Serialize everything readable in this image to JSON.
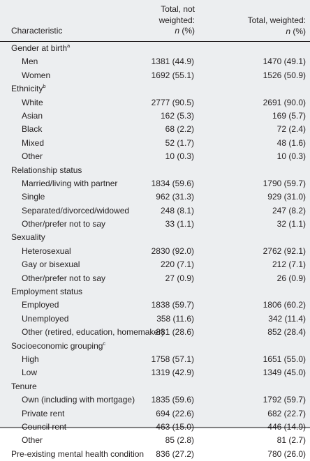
{
  "header": {
    "characteristic": "Characteristic",
    "col1_line1": "Total, not",
    "col1_line2": "weighted:",
    "col1_n": "n",
    "col1_pct": " (%)",
    "col2_line1": "Total, weighted:",
    "col2_n": "n",
    "col2_pct": " (%)"
  },
  "rows": [
    {
      "type": "group",
      "label": "Gender at birth",
      "sup": "a",
      "v1": "",
      "v2": ""
    },
    {
      "type": "item",
      "label": "Men",
      "v1": "1381 (44.9)",
      "v2": "1470 (49.1)"
    },
    {
      "type": "item",
      "label": "Women",
      "v1": "1692 (55.1)",
      "v2": "1526 (50.9)"
    },
    {
      "type": "group",
      "label": "Ethnicity",
      "sup": "b",
      "v1": "",
      "v2": ""
    },
    {
      "type": "item",
      "label": "White",
      "v1": "2777 (90.5)",
      "v2": "2691 (90.0)"
    },
    {
      "type": "item",
      "label": "Asian",
      "v1": "162 (5.3)",
      "v2": "169 (5.7)"
    },
    {
      "type": "item",
      "label": "Black",
      "v1": "68 (2.2)",
      "v2": "72 (2.4)"
    },
    {
      "type": "item",
      "label": "Mixed",
      "v1": "52 (1.7)",
      "v2": "48 (1.6)"
    },
    {
      "type": "item",
      "label": "Other",
      "v1": "10 (0.3)",
      "v2": "10 (0.3)"
    },
    {
      "type": "group",
      "label": "Relationship status",
      "sup": "",
      "v1": "",
      "v2": ""
    },
    {
      "type": "item",
      "label": "Married/living with partner",
      "v1": "1834 (59.6)",
      "v2": "1790 (59.7)"
    },
    {
      "type": "item",
      "label": "Single",
      "v1": "962 (31.3)",
      "v2": "929 (31.0)"
    },
    {
      "type": "item",
      "label": "Separated/divorced/widowed",
      "v1": "248 (8.1)",
      "v2": "247 (8.2)"
    },
    {
      "type": "item",
      "label": "Other/prefer not to say",
      "v1": "33 (1.1)",
      "v2": "32 (1.1)"
    },
    {
      "type": "group",
      "label": "Sexuality",
      "sup": "",
      "v1": "",
      "v2": ""
    },
    {
      "type": "item",
      "label": "Heterosexual",
      "v1": "2830 (92.0)",
      "v2": "2762 (92.1)"
    },
    {
      "type": "item",
      "label": "Gay or bisexual",
      "v1": "220 (7.1)",
      "v2": "212 (7.1)"
    },
    {
      "type": "item",
      "label": "Other/prefer not to say",
      "v1": "27 (0.9)",
      "v2": "26 (0.9)"
    },
    {
      "type": "group",
      "label": "Employment status",
      "sup": "",
      "v1": "",
      "v2": ""
    },
    {
      "type": "item",
      "label": "Employed",
      "v1": "1838 (59.7)",
      "v2": "1806 (60.2)"
    },
    {
      "type": "item",
      "label": "Unemployed",
      "v1": "358 (11.6)",
      "v2": "342 (11.4)"
    },
    {
      "type": "item",
      "label": "Other (retired, education, homemaker)",
      "v1": "881 (28.6)",
      "v2": "852 (28.4)"
    },
    {
      "type": "group",
      "label": "Socioeconomic grouping",
      "sup": "c",
      "v1": "",
      "v2": ""
    },
    {
      "type": "item",
      "label": "High",
      "v1": "1758 (57.1)",
      "v2": "1651 (55.0)"
    },
    {
      "type": "item",
      "label": "Low",
      "v1": "1319 (42.9)",
      "v2": "1349 (45.0)"
    },
    {
      "type": "group",
      "label": "Tenure",
      "sup": "",
      "v1": "",
      "v2": ""
    },
    {
      "type": "item",
      "label": "Own (including with mortgage)",
      "v1": "1835 (59.6)",
      "v2": "1792 (59.7)"
    },
    {
      "type": "item",
      "label": "Private rent",
      "v1": "694 (22.6)",
      "v2": "682 (22.7)"
    },
    {
      "type": "item",
      "label": "Council rent",
      "v1": "463 (15.0)",
      "v2": "446 (14.9)"
    },
    {
      "type": "item",
      "label": "Other",
      "v1": "85 (2.8)",
      "v2": "81 (2.7)"
    },
    {
      "type": "group",
      "label": "Pre-existing mental health condition",
      "sup": "",
      "v1": "836 (27.2)",
      "v2": "780 (26.0)"
    }
  ]
}
